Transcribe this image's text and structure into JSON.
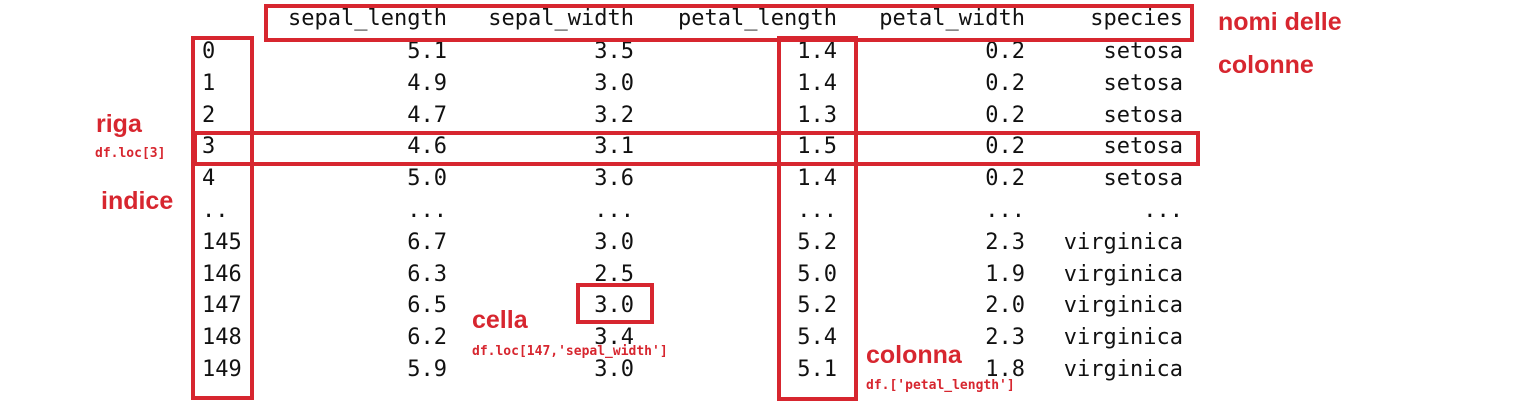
{
  "columns": [
    "sepal_length",
    "sepal_width",
    "petal_length",
    "petal_width",
    "species"
  ],
  "rows": [
    {
      "index": "0",
      "values": [
        "5.1",
        "3.5",
        "1.4",
        "0.2",
        "setosa"
      ]
    },
    {
      "index": "1",
      "values": [
        "4.9",
        "3.0",
        "1.4",
        "0.2",
        "setosa"
      ]
    },
    {
      "index": "2",
      "values": [
        "4.7",
        "3.2",
        "1.3",
        "0.2",
        "setosa"
      ]
    },
    {
      "index": "3",
      "values": [
        "4.6",
        "3.1",
        "1.5",
        "0.2",
        "setosa"
      ]
    },
    {
      "index": "4",
      "values": [
        "5.0",
        "3.6",
        "1.4",
        "0.2",
        "setosa"
      ]
    },
    {
      "index": "..",
      "values": [
        "...",
        "...",
        "...",
        "...",
        "..."
      ]
    },
    {
      "index": "145",
      "values": [
        "6.7",
        "3.0",
        "5.2",
        "2.3",
        "virginica"
      ]
    },
    {
      "index": "146",
      "values": [
        "6.3",
        "2.5",
        "5.0",
        "1.9",
        "virginica"
      ]
    },
    {
      "index": "147",
      "values": [
        "6.5",
        "3.0",
        "5.2",
        "2.0",
        "virginica"
      ]
    },
    {
      "index": "148",
      "values": [
        "6.2",
        "3.4",
        "5.4",
        "2.3",
        "virginica"
      ]
    },
    {
      "index": "149",
      "values": [
        "5.9",
        "3.0",
        "5.1",
        "1.8",
        "virginica"
      ]
    }
  ],
  "annotations": {
    "column_names_line1": "nomi delle",
    "column_names_line2": "colonne",
    "row_label": "riga",
    "row_code": "df.loc[3]",
    "index_label": "indice",
    "cell_label": "cella",
    "cell_code": "df.loc[147,'sepal_width']",
    "column_label": "colonna",
    "column_code": "df.['petal_length']"
  },
  "accent_color": "#d7262f"
}
